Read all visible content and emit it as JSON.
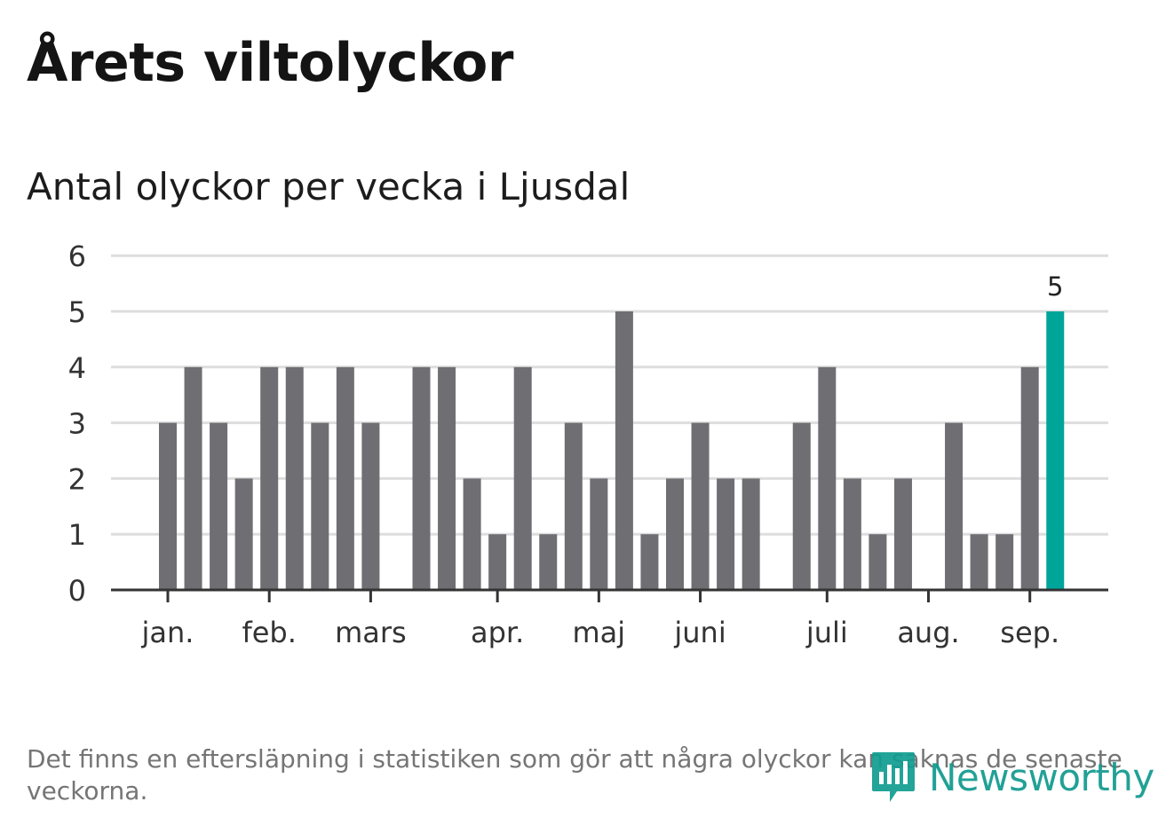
{
  "title": "Årets viltolyckor",
  "subtitle": "Antal olyckor per vecka i Ljusdal",
  "footnote": "Det finns en eftersläpning i statistiken som gör att några olyckor kan saknas de senaste veckorna.",
  "brand": {
    "name": "Newsworthy",
    "color": "#109d90"
  },
  "colors": {
    "bar": "#6f6e73",
    "highlight": "#00a59a",
    "grid": "#dddddd",
    "axis": "#333333"
  },
  "chart_data": {
    "type": "bar",
    "ylim": [
      0,
      6
    ],
    "yticks": [
      0,
      1,
      2,
      3,
      4,
      5,
      6
    ],
    "grid": true,
    "week_start": 2,
    "values": [
      3,
      4,
      3,
      2,
      4,
      4,
      3,
      4,
      3,
      0,
      4,
      4,
      2,
      1,
      4,
      1,
      3,
      2,
      5,
      1,
      2,
      3,
      2,
      2,
      0,
      3,
      4,
      2,
      1,
      2,
      0,
      3,
      1,
      1,
      4,
      5
    ],
    "highlight_index": 35,
    "highlight_label": "5",
    "months": [
      {
        "label": "jan.",
        "week": 2
      },
      {
        "label": "feb.",
        "week": 6
      },
      {
        "label": "mars",
        "week": 10
      },
      {
        "label": "apr.",
        "week": 15
      },
      {
        "label": "maj",
        "week": 19
      },
      {
        "label": "juni",
        "week": 23
      },
      {
        "label": "juli",
        "week": 28
      },
      {
        "label": "aug.",
        "week": 32
      },
      {
        "label": "sep.",
        "week": 36
      }
    ]
  }
}
